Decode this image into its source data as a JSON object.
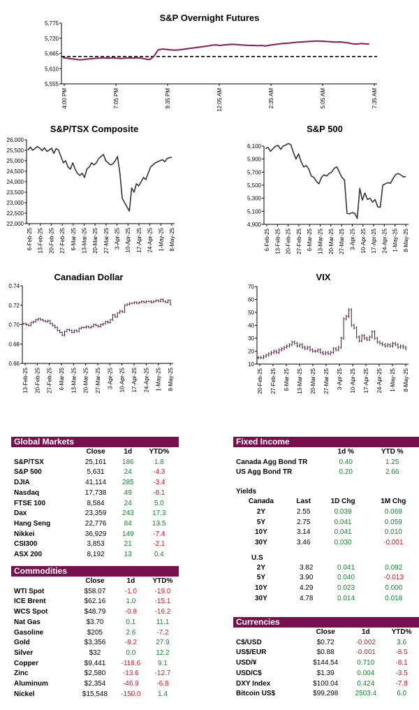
{
  "chart_data": [
    {
      "id": "spx_futures",
      "type": "line",
      "title": "S&P Overnight Futures",
      "x_labels": [
        "4:00 PM",
        "7:05 PM",
        "9:35 PM",
        "12:05 AM",
        "2:35 AM",
        "5:05 AM",
        "7:35 AM"
      ],
      "y_ticks": [
        5555,
        5610,
        5665,
        5720,
        5775
      ],
      "ylim": [
        5555,
        5775
      ],
      "reference_line": 5654,
      "values": [
        5650,
        5648,
        5646,
        5644,
        5642,
        5643,
        5645,
        5646,
        5648,
        5648,
        5649,
        5648,
        5649,
        5648,
        5647,
        5648,
        5649,
        5648,
        5649,
        5648,
        5645,
        5643,
        5655,
        5678,
        5681,
        5680,
        5678,
        5677,
        5678,
        5680,
        5682,
        5684,
        5686,
        5688,
        5690,
        5692,
        5695,
        5696,
        5694,
        5696,
        5697,
        5698,
        5697,
        5696,
        5695,
        5694,
        5694,
        5693,
        5694,
        5692,
        5695,
        5697,
        5699,
        5701,
        5702,
        5703,
        5705,
        5706,
        5707,
        5708,
        5709,
        5710,
        5710,
        5709,
        5708,
        5707,
        5706,
        5707,
        5705,
        5703,
        5700,
        5699,
        5701,
        5700,
        5699
      ]
    },
    {
      "id": "tsx",
      "type": "line",
      "title": "S&P/TSX Composite",
      "x_labels": [
        "6-Feb-25",
        "13-Feb-25",
        "20-Feb-25",
        "27-Feb-25",
        "6-Mar-25",
        "13-Mar-25",
        "20-Mar-25",
        "27-Mar-25",
        "3-Apr-25",
        "10-Apr-25",
        "17-Apr-25",
        "24-Apr-25",
        "1-May-25",
        "8-May-25"
      ],
      "y_ticks": [
        22000,
        22500,
        23000,
        23500,
        24000,
        24500,
        25000,
        25500,
        26000
      ],
      "ylim": [
        22000,
        26000
      ],
      "values": [
        25500,
        25650,
        25500,
        25580,
        25680,
        25600,
        25480,
        25620,
        25450,
        25500,
        25600,
        25350,
        25580,
        25500,
        25200,
        24900,
        25000,
        24700,
        24600,
        24900,
        24600,
        24400,
        24300,
        24400,
        24200,
        24600,
        24700,
        24900,
        24800,
        24900,
        25100,
        25200,
        25300,
        25000,
        24900,
        24800,
        24850,
        25000,
        25200,
        24400,
        23200,
        23000,
        22800,
        22600,
        23700,
        23500,
        23900,
        23800,
        24000,
        24200,
        24100,
        24400,
        24700,
        24800,
        24900,
        24950,
        25000,
        25050,
        24950,
        25100,
        25150,
        25161
      ]
    },
    {
      "id": "spx",
      "type": "line",
      "title": "S&P 500",
      "x_labels": [
        "6-Feb-25",
        "13-Feb-25",
        "20-Feb-25",
        "27-Feb-25",
        "6-Mar-25",
        "13-Mar-25",
        "20-Mar-25",
        "27-Mar-25",
        "3-Apr-25",
        "10-Apr-25",
        "17-Apr-25",
        "24-Apr-25",
        "1-May-25",
        "8-May-25"
      ],
      "y_ticks": [
        4900,
        5100,
        5300,
        5500,
        5700,
        5900,
        6100
      ],
      "ylim": [
        4900,
        6100
      ],
      "values": [
        6060,
        6080,
        6020,
        6060,
        6100,
        6110,
        6050,
        6100,
        6115,
        6140,
        6120,
        6000,
        5900,
        5980,
        5860,
        5780,
        5800,
        5750,
        5640,
        5620,
        5560,
        5520,
        5620,
        5660,
        5640,
        5680,
        5700,
        5760,
        5780,
        5700,
        5620,
        5580,
        5070,
        5060,
        5080,
        5070,
        4990,
        5450,
        5270,
        5380,
        5280,
        5300,
        5240,
        5280,
        5170,
        5160,
        5500,
        5520,
        5540,
        5530,
        5600,
        5660,
        5680,
        5660,
        5630,
        5631
      ]
    },
    {
      "id": "cad",
      "type": "ohlc",
      "title": "Canadian Dollar",
      "x_labels": [
        "13-Feb-25",
        "20-Feb-25",
        "27-Feb-25",
        "6-Mar-25",
        "13-Mar-25",
        "20-Mar-25",
        "27-Mar-25",
        "3-Apr-25",
        "10-Apr-25",
        "17-Apr-25",
        "24-Apr-25",
        "1-May-25",
        "8-May-25"
      ],
      "y_ticks": [
        0.66,
        0.68,
        0.7,
        0.72,
        0.74
      ],
      "ylim": [
        0.66,
        0.74
      ],
      "values": [
        0.701,
        0.7,
        0.699,
        0.702,
        0.703,
        0.705,
        0.706,
        0.705,
        0.704,
        0.703,
        0.704,
        0.701,
        0.699,
        0.697,
        0.694,
        0.692,
        0.689,
        0.693,
        0.695,
        0.694,
        0.692,
        0.694,
        0.693,
        0.696,
        0.697,
        0.697,
        0.698,
        0.697,
        0.698,
        0.7,
        0.699,
        0.698,
        0.7,
        0.701,
        0.703,
        0.702,
        0.705,
        0.71,
        0.708,
        0.712,
        0.714,
        0.713,
        0.72,
        0.721,
        0.722,
        0.722,
        0.723,
        0.722,
        0.723,
        0.724,
        0.723,
        0.724,
        0.724,
        0.723,
        0.724,
        0.725,
        0.724,
        0.726,
        0.724,
        0.723,
        0.725,
        0.721
      ]
    },
    {
      "id": "vix",
      "type": "ohlc",
      "title": "VIX",
      "x_labels": [
        "20-Feb-25",
        "27-Feb-25",
        "6-Mar-25",
        "13-Mar-25",
        "20-Mar-25",
        "27-Mar-25",
        "3-Apr-25",
        "10-Apr-25",
        "17-Apr-25",
        "24-Apr-25",
        "1-May-25",
        "8-May-25"
      ],
      "y_ticks": [
        10,
        20,
        30,
        40,
        50,
        60,
        70
      ],
      "ylim": [
        10,
        70
      ],
      "values": [
        15,
        15,
        16,
        17,
        18,
        19,
        20,
        19,
        21,
        22,
        23,
        24,
        25,
        27,
        26,
        24,
        25,
        23,
        22,
        23,
        21,
        20,
        20,
        21,
        19,
        18,
        19,
        18,
        19,
        22,
        21,
        23,
        30,
        45,
        47,
        52,
        40,
        38,
        31,
        28,
        32,
        30,
        29,
        31,
        35,
        30,
        27,
        26,
        25,
        24,
        25,
        24,
        26,
        25,
        23,
        24,
        23,
        22
      ]
    }
  ],
  "global_markets": {
    "title": "Global Markets",
    "headers": [
      "",
      "Close",
      "1d",
      "YTD%"
    ],
    "rows": [
      {
        "name": "S&P/TSX",
        "close": "25,161",
        "d": "186",
        "ytd": "1.8"
      },
      {
        "name": "S&P 500",
        "close": "5,631",
        "d": "24",
        "ytd": "-4.3"
      },
      {
        "name": "DJIA",
        "close": "41,114",
        "d": "285",
        "ytd": "-3.4"
      },
      {
        "name": "Nasdaq",
        "close": "17,738",
        "d": "49",
        "ytd": "-8.1"
      },
      {
        "name": "FTSE 100",
        "close": "8,584",
        "d": "24",
        "ytd": "5.0"
      },
      {
        "name": "Dax",
        "close": "23,359",
        "d": "243",
        "ytd": "17.3"
      },
      {
        "name": "Hang Seng",
        "close": "22,776",
        "d": "84",
        "ytd": "13.5"
      },
      {
        "name": "Nikkei",
        "close": "36,929",
        "d": "149",
        "ytd": "-7.4"
      },
      {
        "name": "CSI300",
        "close": "3,853",
        "d": "21",
        "ytd": "-2.1"
      },
      {
        "name": "ASX 200",
        "close": "8,192",
        "d": "13",
        "ytd": "0.4"
      }
    ]
  },
  "commodities": {
    "title": "Commodities",
    "headers": [
      "",
      "Close",
      "1d",
      "YTD%"
    ],
    "rows": [
      {
        "name": "WTI Spot",
        "close": "$58.07",
        "d": "-1.0",
        "ytd": "-19.0"
      },
      {
        "name": "ICE Brent",
        "close": "$62.16",
        "d": "1.0",
        "ytd": "-15.1"
      },
      {
        "name": "WCS Spot",
        "close": "$48.79",
        "d": "-0.8",
        "ytd": "-16.2"
      },
      {
        "name": "Nat Gas",
        "close": "$3.70",
        "d": "0.1",
        "ytd": "11.1"
      },
      {
        "name": "Gasoline",
        "close": "$205",
        "d": "2.6",
        "ytd": "-7.2"
      },
      {
        "name": "Gold",
        "close": "$3,356",
        "d": "-8.2",
        "ytd": "27.9"
      },
      {
        "name": "Silver",
        "close": "$32",
        "d": "0.0",
        "ytd": "12.2"
      },
      {
        "name": "Copper",
        "close": "$9,441",
        "d": "-118.6",
        "ytd": "9.1"
      },
      {
        "name": "Zinc",
        "close": "$2,580",
        "d": "-13.6",
        "ytd": "-12.7"
      },
      {
        "name": "Aluminum",
        "close": "$2,354",
        "d": "-46.9",
        "ytd": "-6.8"
      },
      {
        "name": "Nickel",
        "close": "$15,548",
        "d": "-150.0",
        "ytd": "1.4"
      }
    ]
  },
  "fixed_income": {
    "title": "Fixed Income",
    "headers": [
      "",
      "1d %",
      "YTD %"
    ],
    "rows": [
      {
        "name": "Canada Agg Bond TR",
        "d": "0.40",
        "ytd": "1.25"
      },
      {
        "name": "US Agg Bond TR",
        "d": "0.20",
        "ytd": "2.66"
      }
    ],
    "yields_label": "Yields",
    "canada_headers": [
      "Canada",
      "Last",
      "1D Chg",
      "1M Chg"
    ],
    "canada": [
      {
        "name": "2Y",
        "last": "2.55",
        "d": "0.039",
        "m": "0.069"
      },
      {
        "name": "5Y",
        "last": "2.75",
        "d": "0.041",
        "m": "0.059"
      },
      {
        "name": "10Y",
        "last": "3.14",
        "d": "0.041",
        "m": "0.010"
      },
      {
        "name": "30Y",
        "last": "3.46",
        "d": "0.030",
        "m": "-0.001"
      }
    ],
    "us_label": "U.S",
    "us": [
      {
        "name": "2Y",
        "last": "3.82",
        "d": "0.041",
        "m": "0.092"
      },
      {
        "name": "5Y",
        "last": "3.90",
        "d": "0.040",
        "m": "-0.013"
      },
      {
        "name": "10Y",
        "last": "4.29",
        "d": "0.023",
        "m": "0.000"
      },
      {
        "name": "30Y",
        "last": "4.78",
        "d": "0.014",
        "m": "0.018"
      }
    ]
  },
  "currencies": {
    "title": "Currencies",
    "headers": [
      "",
      "Close",
      "1d",
      "YTD%"
    ],
    "rows": [
      {
        "name": "C$/USD",
        "close": "$0.72",
        "d": "-0.002",
        "ytd": "3.6"
      },
      {
        "name": "US$/EUR",
        "close": "$0.88",
        "d": "-0.001",
        "ytd": "-8.5"
      },
      {
        "name": "USD/¥",
        "close": "$144.54",
        "d": "0.710",
        "ytd": "-8.1"
      },
      {
        "name": "USD/C$",
        "close": "$1.39",
        "d": "0.004",
        "ytd": "-3.5"
      },
      {
        "name": "DXY Index",
        "close": "$100.04",
        "d": "0.424",
        "ytd": "-7.8"
      },
      {
        "name": "Bitcoin US$",
        "close": "$99,298",
        "d": "2503.4",
        "ytd": "6.0"
      }
    ]
  },
  "colors": {
    "line_futures": "#8b1a5a",
    "line_dark": "#333333",
    "header_bg": "#7a0f4f",
    "positive": "#118a2a",
    "negative": "#e0141e"
  }
}
